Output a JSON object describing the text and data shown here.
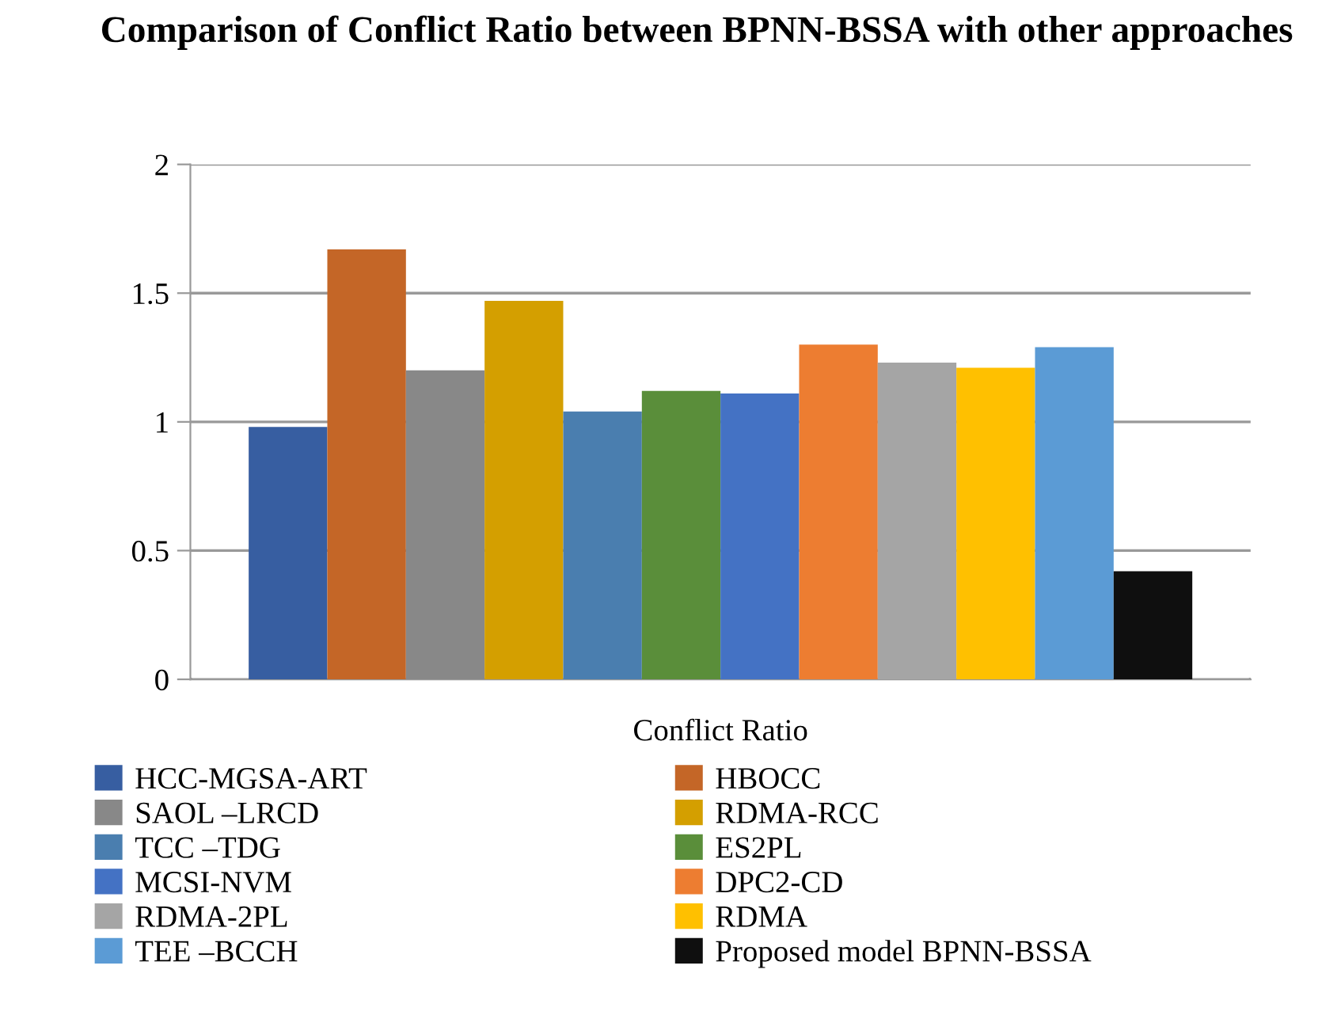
{
  "chart_data": {
    "type": "bar",
    "title": "Comparison of Conflict Ratio between BPNN-BSSA with other approaches",
    "categories": [
      "Conflict Ratio"
    ],
    "series": [
      {
        "name": "HCC-MGSA-ART",
        "color": "#375ea1",
        "values": [
          0.98
        ]
      },
      {
        "name": "HBOCC",
        "color": "#c46627",
        "values": [
          1.67
        ]
      },
      {
        "name": "SAOL –LRCD",
        "color": "#888888",
        "values": [
          1.2
        ]
      },
      {
        "name": "RDMA-RCC",
        "color": "#d49f00",
        "values": [
          1.47
        ]
      },
      {
        "name": "TCC –TDG",
        "color": "#4a7eaf",
        "values": [
          1.04
        ]
      },
      {
        "name": "ES2PL",
        "color": "#5a8e3a",
        "values": [
          1.12
        ]
      },
      {
        "name": "MCSI-NVM",
        "color": "#4472c4",
        "values": [
          1.11
        ]
      },
      {
        "name": "DPC2-CD",
        "color": "#ed7d31",
        "values": [
          1.3
        ]
      },
      {
        "name": "RDMA-2PL",
        "color": "#a5a5a5",
        "values": [
          1.23
        ]
      },
      {
        "name": "RDMA",
        "color": "#ffc000",
        "values": [
          1.21
        ]
      },
      {
        "name": "TEE –BCCH",
        "color": "#5b9bd5",
        "values": [
          1.29
        ]
      },
      {
        "name": "Proposed model BPNN-BSSA",
        "color": "#0f0f0f",
        "values": [
          0.42
        ]
      }
    ],
    "ylim": [
      0,
      2
    ],
    "yticks": [
      0,
      0.5,
      1,
      1.5,
      2
    ],
    "grid": "y",
    "legend": "bottom"
  }
}
